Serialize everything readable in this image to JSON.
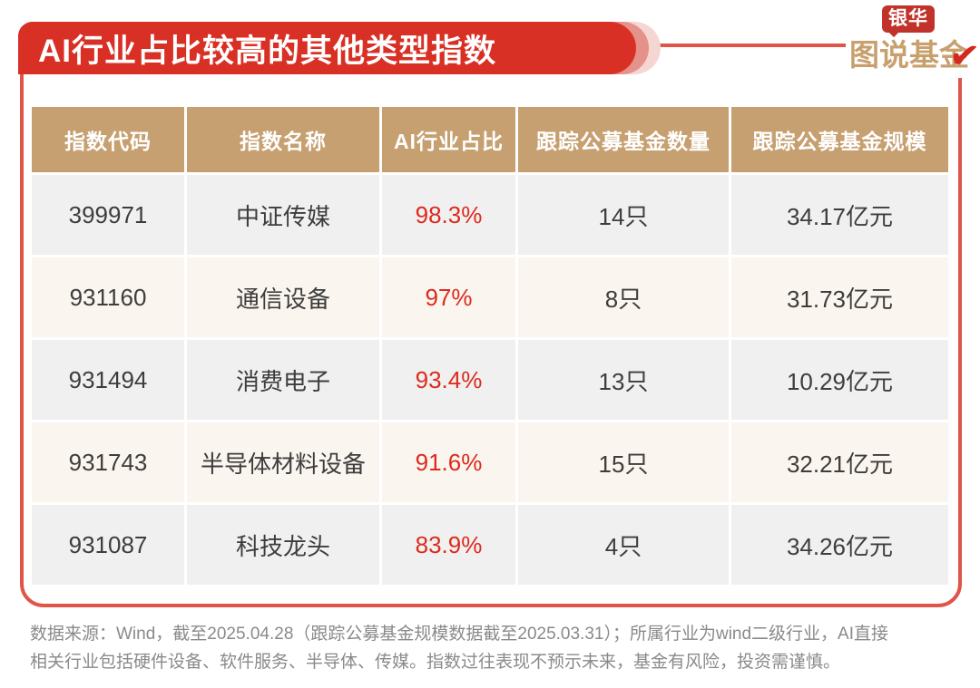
{
  "banner": {
    "title": "AI行业占比较高的其他类型指数",
    "color": "#d93026"
  },
  "logo": {
    "tag": "银华",
    "wordmark": "图说基金",
    "checkmark": "✔",
    "gold": "#c8a06e",
    "tag_red": "#c1332a",
    "check_red": "#d5281e"
  },
  "chart_data": {
    "type": "table",
    "title": "AI行业占比较高的其他类型指数",
    "columns": [
      "指数代码",
      "指数名称",
      "AI行业占比",
      "跟踪公募基金数量",
      "跟踪公募基金规模"
    ],
    "rows": [
      [
        "399971",
        "中证传媒",
        "98.3%",
        "14只",
        "34.17亿元"
      ],
      [
        "931160",
        "通信设备",
        "97%",
        "8只",
        "31.73亿元"
      ],
      [
        "931494",
        "消费电子",
        "93.4%",
        "13只",
        "10.29亿元"
      ],
      [
        "931743",
        "半导体材料设备",
        "91.6%",
        "15只",
        "32.21亿元"
      ],
      [
        "931087",
        "科技龙头",
        "83.9%",
        "4只",
        "34.26亿元"
      ]
    ],
    "ai_share_pct": [
      98.3,
      97,
      93.4,
      91.6,
      83.9
    ],
    "fund_count": [
      14,
      8,
      13,
      15,
      4
    ],
    "fund_scale_yi_yuan": [
      34.17,
      31.73,
      10.29,
      32.21,
      34.26
    ]
  },
  "footer": {
    "line1": "数据来源：Wind，截至2025.04.28（跟踪公募基金规模数据截至2025.03.31）；所属行业为wind二级行业，AI直接",
    "line2": "相关行业包括硬件设备、软件服务、半导体、传媒。指数过往表现不预示未来，基金有风险，投资需谨慎。"
  },
  "colors": {
    "banner_red": "#d93026",
    "ring_mid": "#e5928b",
    "ring_outer": "#f6d6d2",
    "frame_red": "#e0544a",
    "header_tan": "#c7a071",
    "row_gray": "#f0f0f0",
    "row_cream": "#faf5ee",
    "value_red": "#dd2a1e",
    "text_dark": "#3d3d3d",
    "footer_gray": "#8a8a8b"
  }
}
